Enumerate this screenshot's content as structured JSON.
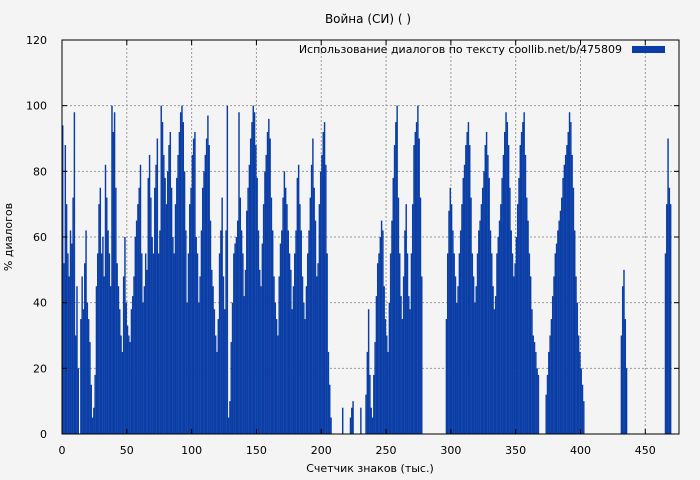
{
  "chart_data": {
    "type": "bar",
    "title": "Война (СИ) ( )",
    "xlabel": "Счетчик знаков (тыс.)",
    "ylabel": "% диалогов",
    "xlim": [
      0,
      476
    ],
    "ylim": [
      0,
      120
    ],
    "x_ticks": [
      0,
      50,
      100,
      150,
      200,
      250,
      300,
      350,
      400,
      450
    ],
    "y_ticks": [
      0,
      20,
      40,
      60,
      80,
      100,
      120
    ],
    "grid": true,
    "legend_position": "top-right",
    "series": [
      {
        "name": "Использование диалогов по тексту  coollib.net/b/475809",
        "color": "#0a3ea6",
        "bin_width": 1,
        "values": [
          94,
          52,
          88,
          70,
          55,
          48,
          62,
          58,
          72,
          98,
          30,
          45,
          20,
          0,
          35,
          48,
          38,
          52,
          62,
          40,
          35,
          28,
          15,
          5,
          8,
          18,
          45,
          55,
          70,
          75,
          55,
          60,
          48,
          82,
          72,
          62,
          55,
          45,
          100,
          92,
          98,
          75,
          52,
          45,
          38,
          30,
          25,
          48,
          60,
          40,
          33,
          30,
          28,
          38,
          42,
          48,
          60,
          65,
          70,
          75,
          82,
          55,
          40,
          45,
          55,
          50,
          78,
          85,
          72,
          60,
          55,
          75,
          82,
          90,
          55,
          62,
          100,
          95,
          85,
          78,
          70,
          80,
          88,
          92,
          75,
          60,
          55,
          70,
          78,
          85,
          92,
          98,
          100,
          95,
          80,
          62,
          40,
          55,
          70,
          75,
          85,
          90,
          92,
          60,
          55,
          40,
          48,
          62,
          75,
          80,
          85,
          90,
          97,
          88,
          65,
          50,
          45,
          38,
          30,
          25,
          35,
          55,
          62,
          72,
          48,
          38,
          62,
          100,
          5,
          10,
          28,
          40,
          55,
          58,
          60,
          65,
          98,
          72,
          62,
          55,
          42,
          50,
          68,
          75,
          82,
          90,
          95,
          100,
          98,
          88,
          78,
          62,
          50,
          45,
          58,
          70,
          80,
          85,
          92,
          96,
          90,
          72,
          62,
          48,
          40,
          35,
          30,
          48,
          58,
          62,
          72,
          80,
          75,
          70,
          62,
          55,
          50,
          38,
          45,
          55,
          62,
          78,
          82,
          70,
          62,
          48,
          40,
          35,
          45,
          55,
          62,
          72,
          82,
          90,
          75,
          65,
          48,
          52,
          70,
          80,
          85,
          92,
          95,
          82,
          55,
          25,
          15,
          5,
          0,
          0,
          0,
          0,
          0,
          0,
          0,
          0,
          8,
          0,
          0,
          0,
          0,
          0,
          5,
          8,
          10,
          0,
          0,
          0,
          0,
          0,
          8,
          0,
          0,
          0,
          12,
          25,
          38,
          18,
          8,
          5,
          18,
          28,
          42,
          52,
          55,
          60,
          65,
          62,
          45,
          35,
          30,
          25,
          40,
          55,
          65,
          78,
          88,
          95,
          100,
          72,
          55,
          42,
          35,
          48,
          62,
          70,
          55,
          42,
          38,
          55,
          70,
          88,
          92,
          95,
          100,
          90,
          72,
          48,
          0,
          0,
          0,
          0,
          0,
          0,
          0,
          0,
          0,
          0,
          0,
          0,
          0,
          0,
          0,
          0,
          0,
          0,
          35,
          55,
          68,
          75,
          70,
          62,
          55,
          48,
          40,
          45,
          55,
          62,
          70,
          78,
          82,
          88,
          92,
          95,
          88,
          72,
          55,
          48,
          40,
          45,
          55,
          62,
          65,
          70,
          75,
          80,
          88,
          92,
          85,
          78,
          62,
          55,
          45,
          38,
          42,
          55,
          60,
          65,
          70,
          78,
          85,
          92,
          98,
          95,
          88,
          75,
          62,
          55,
          48,
          52,
          60,
          70,
          78,
          88,
          92,
          95,
          98,
          85,
          72,
          65,
          55,
          48,
          38,
          30,
          28,
          25,
          20,
          18,
          0,
          0,
          0,
          0,
          0,
          12,
          18,
          25,
          30,
          35,
          42,
          48,
          55,
          58,
          62,
          65,
          68,
          72,
          78,
          82,
          85,
          88,
          92,
          98,
          95,
          85,
          75,
          62,
          48,
          40,
          30,
          25,
          20,
          15,
          10,
          0,
          0,
          0,
          0,
          0,
          0,
          0,
          0,
          0,
          0,
          0,
          0,
          0,
          0,
          0,
          0,
          0,
          0,
          0,
          0,
          0,
          0,
          0,
          0,
          0,
          0,
          0,
          0,
          30,
          45,
          50,
          35,
          20,
          0,
          0,
          0,
          0,
          0,
          0,
          0,
          0,
          0,
          0,
          0,
          0,
          0,
          0,
          0,
          0,
          0,
          0,
          0,
          0,
          0,
          0,
          0,
          0,
          0,
          0,
          0,
          0,
          0,
          55,
          70,
          90,
          75,
          70
        ]
      }
    ]
  }
}
